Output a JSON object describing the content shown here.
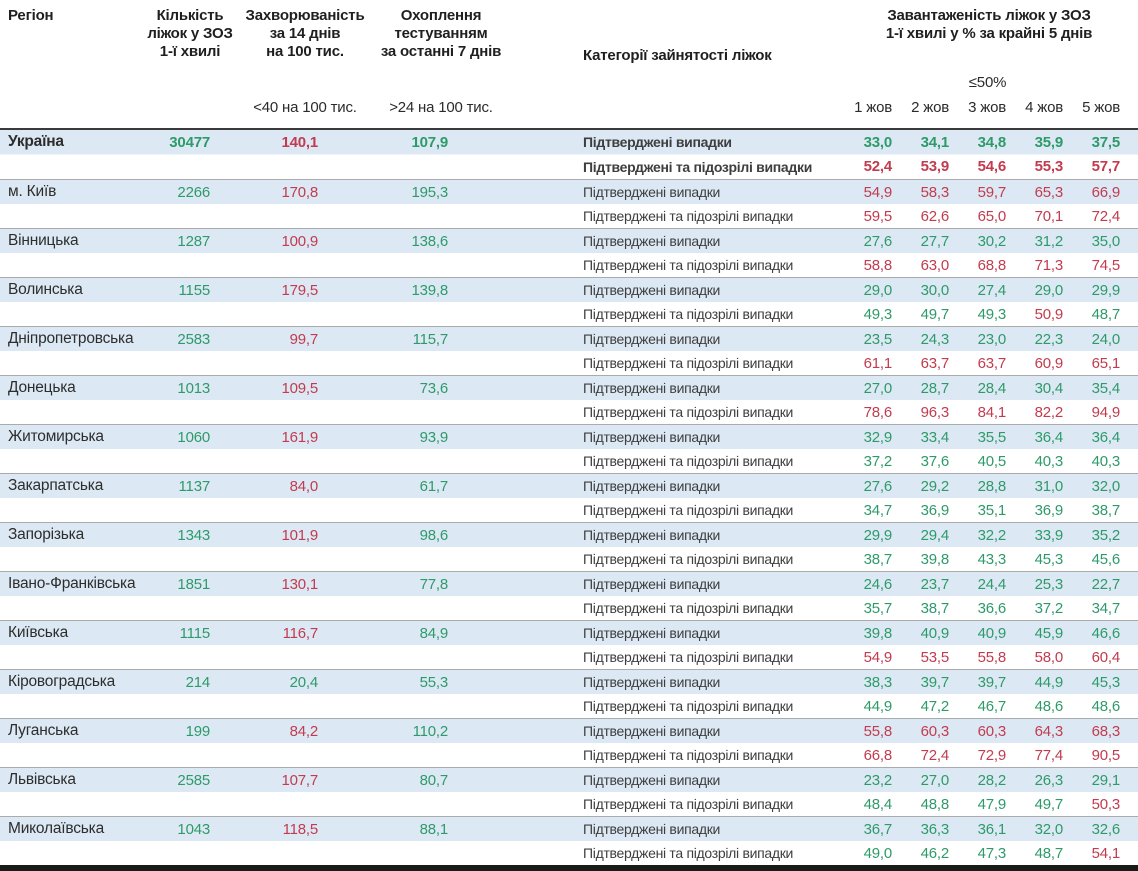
{
  "header": {
    "region": "Регіон",
    "beds": [
      "Кількість",
      "ліжок у ЗОЗ",
      "1-ї хвилі"
    ],
    "incidence": [
      "Захворюваність",
      "за 14 днів",
      "на 100 тис."
    ],
    "testing": [
      "Охоплення",
      "тестуванням",
      "за останні 7 днів"
    ],
    "incidence_threshold_label": "<40 на 100 тис.",
    "testing_threshold_label": ">24 на 100 тис.",
    "category": "Категорії зайнятості ліжок",
    "occupancy": [
      "Завантаженість ліжок у ЗОЗ",
      "1-ї хвилі у % за крайні 5 днів"
    ],
    "occupancy_threshold_label": "≤50%",
    "days": [
      "1 жов",
      "2 жов",
      "3 жов",
      "4 жов",
      "5 жов"
    ]
  },
  "row_labels": {
    "confirmed": "Підтверджені випадки",
    "confirmed_suspected": "Підтверджені та підозрілі випадки"
  },
  "thresholds": {
    "incidence_red_above": 40,
    "testing_green_above": 24,
    "occupancy_red_above": 50
  },
  "colors": {
    "green": "#2E9A69",
    "red": "#C23B4E",
    "band_blue": "#DCE9F4",
    "bottom_bar": "#1A1A1A"
  },
  "chart_data": {
    "type": "table",
    "columns": [
      "Регіон",
      "Кількість ліжок у ЗОЗ 1-ї хвилі",
      "Захворюваність за 14 днів на 100 тис.",
      "Охоплення тестуванням за останні 7 днів",
      "Категорії зайнятості ліжок",
      "Завантаженість ліжок у ЗОЗ 1-ї хвилі у % за крайні 5 днів: 1 жов, 2 жов, 3 жов, 4 жов, 5 жов"
    ],
    "rows": [
      {
        "region": "Україна",
        "bold": true,
        "beds": "30477",
        "incidence": "140,1",
        "testing": "107,9",
        "occupancy_confirmed": [
          "33,0",
          "34,1",
          "34,8",
          "35,9",
          "37,5"
        ],
        "occupancy_confirmed_suspected": [
          "52,4",
          "53,9",
          "54,6",
          "55,3",
          "57,7"
        ]
      },
      {
        "region": "м. Київ",
        "bold": false,
        "beds": "2266",
        "incidence": "170,8",
        "testing": "195,3",
        "occupancy_confirmed": [
          "54,9",
          "58,3",
          "59,7",
          "65,3",
          "66,9"
        ],
        "occupancy_confirmed_suspected": [
          "59,5",
          "62,6",
          "65,0",
          "70,1",
          "72,4"
        ]
      },
      {
        "region": "Вінницька",
        "bold": false,
        "beds": "1287",
        "incidence": "100,9",
        "testing": "138,6",
        "occupancy_confirmed": [
          "27,6",
          "27,7",
          "30,2",
          "31,2",
          "35,0"
        ],
        "occupancy_confirmed_suspected": [
          "58,8",
          "63,0",
          "68,8",
          "71,3",
          "74,5"
        ]
      },
      {
        "region": "Волинська",
        "bold": false,
        "beds": "1155",
        "incidence": "179,5",
        "testing": "139,8",
        "occupancy_confirmed": [
          "29,0",
          "30,0",
          "27,4",
          "29,0",
          "29,9"
        ],
        "occupancy_confirmed_suspected": [
          "49,3",
          "49,7",
          "49,3",
          "50,9",
          "48,7"
        ]
      },
      {
        "region": "Дніпропетровська",
        "bold": false,
        "beds": "2583",
        "incidence": "99,7",
        "testing": "115,7",
        "occupancy_confirmed": [
          "23,5",
          "24,3",
          "23,0",
          "22,3",
          "24,0"
        ],
        "occupancy_confirmed_suspected": [
          "61,1",
          "63,7",
          "63,7",
          "60,9",
          "65,1"
        ]
      },
      {
        "region": "Донецька",
        "bold": false,
        "beds": "1013",
        "incidence": "109,5",
        "testing": "73,6",
        "occupancy_confirmed": [
          "27,0",
          "28,7",
          "28,4",
          "30,4",
          "35,4"
        ],
        "occupancy_confirmed_suspected": [
          "78,6",
          "96,3",
          "84,1",
          "82,2",
          "94,9"
        ]
      },
      {
        "region": "Житомирська",
        "bold": false,
        "beds": "1060",
        "incidence": "161,9",
        "testing": "93,9",
        "occupancy_confirmed": [
          "32,9",
          "33,4",
          "35,5",
          "36,4",
          "36,4"
        ],
        "occupancy_confirmed_suspected": [
          "37,2",
          "37,6",
          "40,5",
          "40,3",
          "40,3"
        ]
      },
      {
        "region": "Закарпатська",
        "bold": false,
        "beds": "1137",
        "incidence": "84,0",
        "testing": "61,7",
        "occupancy_confirmed": [
          "27,6",
          "29,2",
          "28,8",
          "31,0",
          "32,0"
        ],
        "occupancy_confirmed_suspected": [
          "34,7",
          "36,9",
          "35,1",
          "36,9",
          "38,7"
        ]
      },
      {
        "region": "Запорізька",
        "bold": false,
        "beds": "1343",
        "incidence": "101,9",
        "testing": "98,6",
        "occupancy_confirmed": [
          "29,9",
          "29,4",
          "32,2",
          "33,9",
          "35,2"
        ],
        "occupancy_confirmed_suspected": [
          "38,7",
          "39,8",
          "43,3",
          "45,3",
          "45,6"
        ]
      },
      {
        "region": "Івано-Франківська",
        "bold": false,
        "beds": "1851",
        "incidence": "130,1",
        "testing": "77,8",
        "occupancy_confirmed": [
          "24,6",
          "23,7",
          "24,4",
          "25,3",
          "22,7"
        ],
        "occupancy_confirmed_suspected": [
          "35,7",
          "38,7",
          "36,6",
          "37,2",
          "34,7"
        ]
      },
      {
        "region": "Київська",
        "bold": false,
        "beds": "1115",
        "incidence": "116,7",
        "testing": "84,9",
        "occupancy_confirmed": [
          "39,8",
          "40,9",
          "40,9",
          "45,9",
          "46,6"
        ],
        "occupancy_confirmed_suspected": [
          "54,9",
          "53,5",
          "55,8",
          "58,0",
          "60,4"
        ]
      },
      {
        "region": "Кіровоградська",
        "bold": false,
        "beds": "214",
        "incidence": "20,4",
        "testing": "55,3",
        "occupancy_confirmed": [
          "38,3",
          "39,7",
          "39,7",
          "44,9",
          "45,3"
        ],
        "occupancy_confirmed_suspected": [
          "44,9",
          "47,2",
          "46,7",
          "48,6",
          "48,6"
        ]
      },
      {
        "region": "Луганська",
        "bold": false,
        "beds": "199",
        "incidence": "84,2",
        "testing": "110,2",
        "occupancy_confirmed": [
          "55,8",
          "60,3",
          "60,3",
          "64,3",
          "68,3"
        ],
        "occupancy_confirmed_suspected": [
          "66,8",
          "72,4",
          "72,9",
          "77,4",
          "90,5"
        ]
      },
      {
        "region": "Львівська",
        "bold": false,
        "beds": "2585",
        "incidence": "107,7",
        "testing": "80,7",
        "occupancy_confirmed": [
          "23,2",
          "27,0",
          "28,2",
          "26,3",
          "29,1"
        ],
        "occupancy_confirmed_suspected": [
          "48,4",
          "48,8",
          "47,9",
          "49,7",
          "50,3"
        ]
      },
      {
        "region": "Миколаївська",
        "bold": false,
        "beds": "1043",
        "incidence": "118,5",
        "testing": "88,1",
        "occupancy_confirmed": [
          "36,7",
          "36,3",
          "36,1",
          "32,0",
          "32,6"
        ],
        "occupancy_confirmed_suspected": [
          "49,0",
          "46,2",
          "47,3",
          "48,7",
          "54,1"
        ]
      }
    ]
  }
}
